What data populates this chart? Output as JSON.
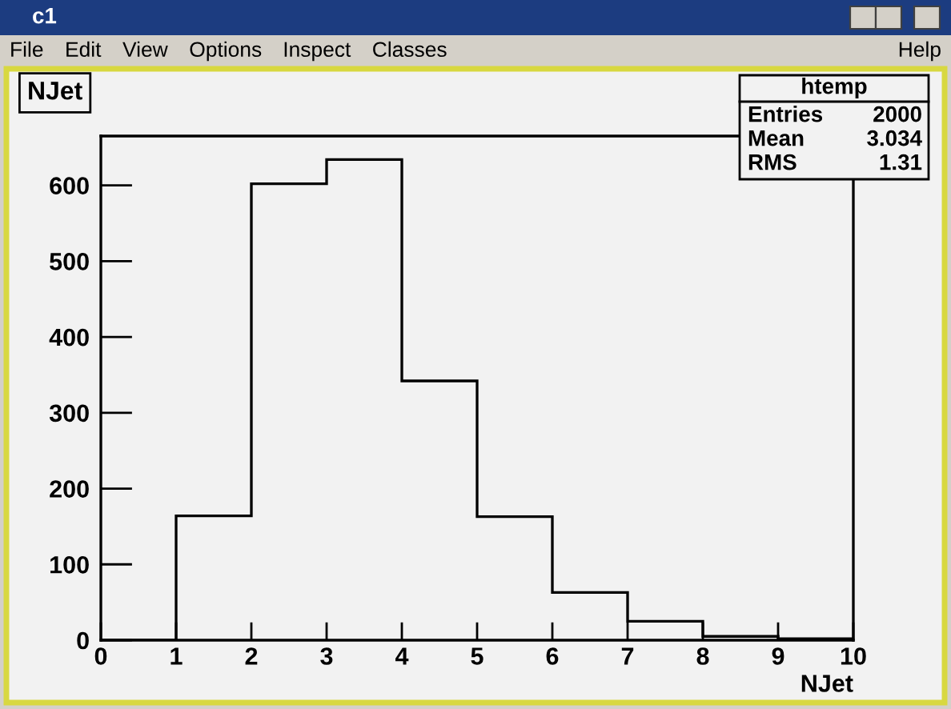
{
  "chart_data": {
    "type": "histogram",
    "title": "NJet",
    "xlabel": "NJet",
    "bins": [
      0,
      1,
      2,
      3,
      4,
      5,
      6,
      7,
      8,
      9,
      10
    ],
    "values": [
      0,
      164,
      602,
      634,
      342,
      163,
      63,
      25,
      5,
      2
    ],
    "color": "#000000",
    "xlim": [
      0,
      10
    ],
    "ylim": [
      0,
      665
    ],
    "xticks": [
      0,
      1,
      2,
      3,
      4,
      5,
      6,
      7,
      8,
      9,
      10
    ],
    "yticks": [
      0,
      100,
      200,
      300,
      400,
      500,
      600
    ],
    "annotations": [
      "c1",
      "File",
      "Edit",
      "View",
      "Options",
      "Inspect",
      "Classes",
      "Help",
      "htemp",
      "Entries",
      "2000",
      "Mean",
      "3.034",
      "RMS",
      "1.31"
    ]
  }
}
